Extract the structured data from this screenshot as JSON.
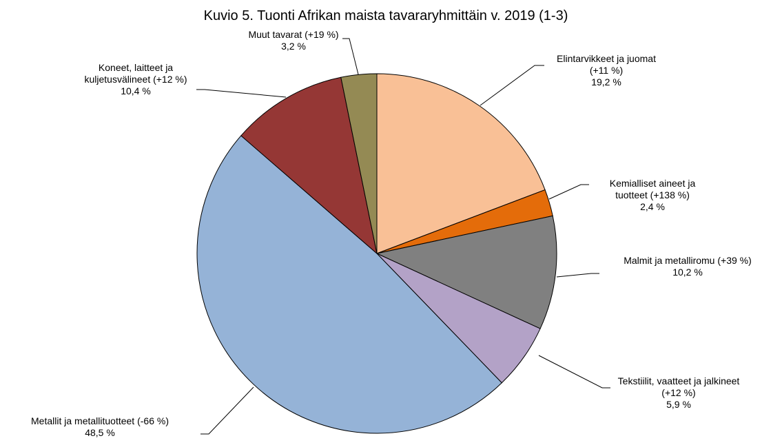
{
  "chart_data": {
    "type": "pie",
    "title": "Kuvio 5. Tuonti Afrikan maista tavararyhmittäin v. 2019 (1-3)",
    "categories": [
      "Elintarvikkeet ja juomat (+11 %)",
      "Kemialliset aineet ja tuotteet (+138 %)",
      "Malmit ja metalliromu (+39 %)",
      "Tekstiilit, vaatteet ja jalkineet (+12 %)",
      "Metallit ja metallituotteet (-66 %)",
      "Koneet, laitteet ja kuljetusvälineet (+12 %)",
      "Muut tavarat (+19 %)"
    ],
    "values": [
      19.2,
      2.4,
      10.2,
      5.9,
      48.5,
      10.4,
      3.2
    ],
    "value_labels": [
      "19,2 %",
      "2,4 %",
      "10,2 %",
      "5,9 %",
      "48,5 %",
      "10,4 %",
      "3,2 %"
    ],
    "colors": [
      "#F9C096",
      "#E46C0A",
      "#808080",
      "#B3A2C7",
      "#95B3D7",
      "#953735",
      "#948A54"
    ]
  }
}
